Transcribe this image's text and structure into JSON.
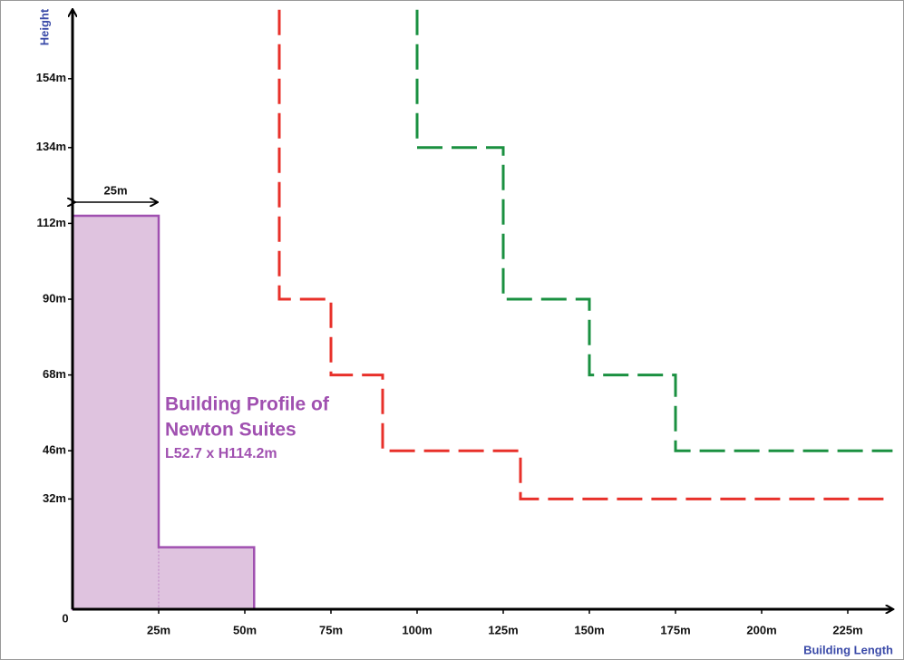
{
  "chart_data": {
    "type": "line",
    "xlabel": "Building Length",
    "ylabel": "Height",
    "origin_label": "0",
    "xlim": [
      0,
      238
    ],
    "ylim": [
      0,
      174
    ],
    "xticks": [
      {
        "value": 25,
        "label": "25m"
      },
      {
        "value": 50,
        "label": "50m"
      },
      {
        "value": 75,
        "label": "75m"
      },
      {
        "value": 100,
        "label": "100m"
      },
      {
        "value": 125,
        "label": "125m"
      },
      {
        "value": 150,
        "label": "150m"
      },
      {
        "value": 175,
        "label": "175m"
      },
      {
        "value": 200,
        "label": "200m"
      },
      {
        "value": 225,
        "label": "225m"
      }
    ],
    "yticks": [
      {
        "value": 32,
        "label": "32m"
      },
      {
        "value": 46,
        "label": "46m"
      },
      {
        "value": 68,
        "label": "68m"
      },
      {
        "value": 90,
        "label": "90m"
      },
      {
        "value": 112,
        "label": "112m"
      },
      {
        "value": 134,
        "label": "134m"
      },
      {
        "value": 154,
        "label": "154m"
      }
    ],
    "building": {
      "x": [
        0,
        0,
        25,
        25,
        52.7,
        52.7
      ],
      "values": [
        0,
        114.2,
        114.2,
        18,
        18,
        0
      ],
      "color": "#a050b0",
      "fill": "#dfc3df"
    },
    "annotation": [
      "Building Profile of",
      "Newton Suites",
      "L52.7 x H114.2m"
    ],
    "dimension": {
      "label": "25m",
      "from": 0,
      "to": 25
    },
    "series": [
      {
        "color": "#e8302a",
        "x": [
          60,
          60,
          75,
          75,
          90,
          90,
          130,
          130,
          238
        ],
        "values": [
          174,
          90,
          90,
          68,
          68,
          46,
          46,
          32,
          32
        ]
      },
      {
        "color": "#1a9040",
        "x": [
          100,
          100,
          125,
          125,
          150,
          150,
          175,
          175,
          238
        ],
        "values": [
          174,
          134,
          134,
          90,
          90,
          68,
          68,
          46,
          46
        ]
      }
    ]
  }
}
